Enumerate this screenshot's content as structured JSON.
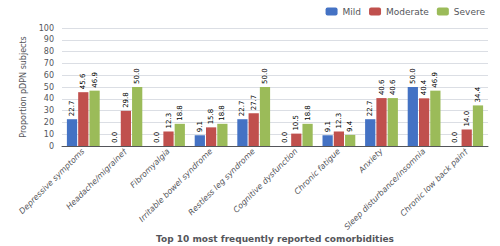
{
  "chart_data": {
    "type": "bar",
    "xlabel": "Top 10 most frequently reported comorbidities",
    "ylabel": "Proportion pDPN subjects",
    "categories": [
      "Depressive symptoms",
      "Headache/migraine†",
      "Fibromyalgia",
      "Irritable bowel syndrome",
      "Restless leg syndrome",
      "Cognitive dysfunction",
      "Chronic fatigue",
      "Anxiety",
      "Sleep disturbance/insomnia",
      "Chronic low back pain†"
    ],
    "series": [
      {
        "name": "Mild",
        "color": "#4472C4",
        "values": [
          22.7,
          0.0,
          0.0,
          9.1,
          22.7,
          0.0,
          9.1,
          22.7,
          50.0,
          0.0
        ],
        "value_labels": [
          "22.7",
          "0.0",
          "0.0",
          "9.1",
          "22.7",
          "0.0",
          "9.1",
          "22.7",
          "50.0",
          "0.0"
        ]
      },
      {
        "name": "Moderate",
        "color": "#C0504D",
        "values": [
          45.6,
          29.8,
          12.3,
          15.8,
          27.7,
          10.5,
          12.3,
          40.6,
          40.4,
          14.0
        ],
        "value_labels": [
          "45.6",
          "29.8",
          "12.3",
          "15.8",
          "27.7",
          "10.5",
          "12.3",
          "40.6",
          "40.4",
          "14.0"
        ]
      },
      {
        "name": "Severe",
        "color": "#9BBB59",
        "values": [
          46.9,
          50.0,
          18.8,
          18.8,
          50.0,
          18.8,
          9.4,
          40.6,
          46.9,
          34.4
        ],
        "value_labels": [
          "46.9",
          "50.0",
          "18.8",
          "18.8",
          "50.0",
          "18.8",
          "9.4",
          "40.6",
          "46.9",
          "34.4"
        ]
      }
    ],
    "ylim": [
      0,
      100
    ],
    "yticks": [
      0,
      10,
      20,
      30,
      40,
      50,
      60,
      70,
      80,
      90,
      100
    ],
    "grid": true,
    "legend": "upper right",
    "data_labels": true
  }
}
